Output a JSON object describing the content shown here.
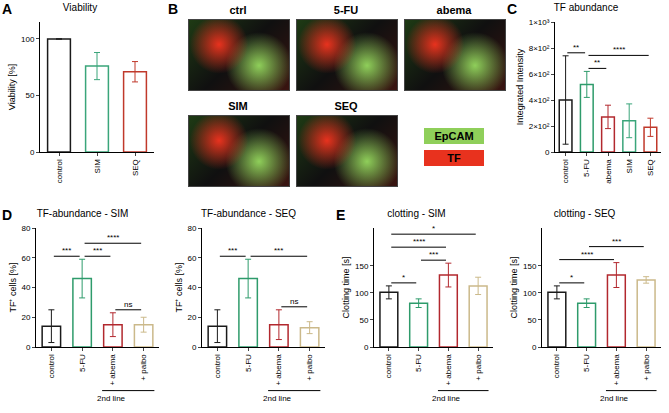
{
  "chart_data": [
    {
      "panel": "A",
      "type": "bar",
      "title": "Viability",
      "y_label": "Viability [%]",
      "categories": [
        "control",
        "SIM",
        "SEQ"
      ],
      "values": [
        100,
        76,
        71
      ],
      "errors": [
        0,
        12,
        9
      ],
      "colors": [
        "#1a1a1a",
        "#3aa57a",
        "#c0392b"
      ],
      "ylim": [
        0,
        115
      ],
      "yticks": [
        0,
        50,
        100
      ],
      "grid": false,
      "significance": []
    },
    {
      "panel": "C",
      "type": "bar",
      "title": "TF abundance",
      "y_label": "Integrated Intensity",
      "categories": [
        "control",
        "5-FU",
        "abema",
        "SIM",
        "SEQ"
      ],
      "values": [
        400,
        520,
        270,
        240,
        190
      ],
      "errors": [
        340,
        100,
        90,
        130,
        70
      ],
      "colors": [
        "#1a1a1a",
        "#2e9b6b",
        "#b2282e",
        "#3aa57a",
        "#c0392b"
      ],
      "ylim": [
        0,
        1000
      ],
      "yticks": [
        0,
        {
          "value": 200,
          "label": "2×10²"
        },
        {
          "value": 400,
          "label": "4×10²"
        },
        {
          "value": 600,
          "label": "6×10²"
        },
        {
          "value": 800,
          "label": "8×10²"
        },
        {
          "value": 1000,
          "label": "1×10³"
        }
      ],
      "grid": false,
      "significance": [
        {
          "from": 0,
          "to": 1,
          "label": "**"
        },
        {
          "from": 1,
          "to": 2,
          "label": "**"
        },
        {
          "from": 1,
          "to": 4,
          "label": "****"
        }
      ]
    },
    {
      "panel": "D",
      "type": "bar",
      "title": "TF-abundance - SIM",
      "y_label": "TF⁺ cells [%]",
      "categories": [
        "control",
        "5-FU",
        "+ abema",
        "+ palbo"
      ],
      "values": [
        14,
        46,
        15,
        15
      ],
      "errors": [
        11,
        13,
        8,
        5
      ],
      "colors": [
        "#1a1a1a",
        "#2e9b6b",
        "#b2282e",
        "#cbb98a"
      ],
      "ylim": [
        0,
        80
      ],
      "yticks": [
        0,
        20,
        40,
        60,
        80
      ],
      "grid": false,
      "significance": [
        {
          "from": 0,
          "to": 1,
          "label": "***"
        },
        {
          "from": 1,
          "to": 3,
          "label": "****"
        },
        {
          "from": 1,
          "to": 2,
          "label": "***"
        },
        {
          "from": 2,
          "to": 3,
          "label": "ns"
        }
      ],
      "group_label": {
        "text": "2nd line",
        "from": 2,
        "to": 3
      }
    },
    {
      "type": "bar",
      "title": "TF-abundance - SEQ",
      "y_label": "TF⁺ cells [%]",
      "categories": [
        "control",
        "5-FU",
        "+ abema",
        "+ palbo"
      ],
      "values": [
        14,
        46,
        15,
        13
      ],
      "errors": [
        11,
        13,
        10,
        4
      ],
      "colors": [
        "#1a1a1a",
        "#2e9b6b",
        "#b2282e",
        "#cbb98a"
      ],
      "ylim": [
        0,
        80
      ],
      "yticks": [
        0,
        20,
        40,
        60,
        80
      ],
      "grid": false,
      "significance": [
        {
          "from": 0,
          "to": 1,
          "label": "***"
        },
        {
          "from": 1,
          "to": 3,
          "label": "***"
        },
        {
          "from": 2,
          "to": 3,
          "label": "ns"
        }
      ],
      "group_label": {
        "text": "2nd line",
        "from": 2,
        "to": 3
      }
    },
    {
      "panel": "E",
      "type": "bar",
      "title": "clotting - SIM",
      "y_label": "Clotting time [s]",
      "categories": [
        "control",
        "5-FU",
        "+ abema",
        "+ palbo"
      ],
      "values": [
        101,
        81,
        133,
        113
      ],
      "errors": [
        12,
        8,
        22,
        16
      ],
      "colors": [
        "#1a1a1a",
        "#2e9b6b",
        "#b2282e",
        "#cbb98a"
      ],
      "ylim": [
        0,
        220
      ],
      "yticks": [
        0,
        50,
        100,
        150
      ],
      "grid": false,
      "significance": [
        {
          "from": 0,
          "to": 1,
          "label": "*"
        },
        {
          "from": 1,
          "to": 2,
          "label": "***"
        },
        {
          "from": 0,
          "to": 2,
          "label": "****"
        },
        {
          "from": 0,
          "to": 3,
          "label": "*"
        }
      ],
      "group_label": {
        "text": "2nd line",
        "from": 2,
        "to": 3
      }
    },
    {
      "type": "bar",
      "title": "clotting - SEQ",
      "y_label": "Clotting time [s]",
      "categories": [
        "control",
        "5-FU",
        "+ abema",
        "+ palbo"
      ],
      "values": [
        101,
        81,
        133,
        124
      ],
      "errors": [
        12,
        8,
        23,
        6
      ],
      "colors": [
        "#1a1a1a",
        "#2e9b6b",
        "#b2282e",
        "#cbb98a"
      ],
      "ylim": [
        0,
        220
      ],
      "yticks": [
        0,
        50,
        100,
        150
      ],
      "grid": false,
      "significance": [
        {
          "from": 0,
          "to": 1,
          "label": "*"
        },
        {
          "from": 0,
          "to": 2,
          "label": "****"
        },
        {
          "from": 1,
          "to": 3,
          "label": "***"
        }
      ],
      "group_label": {
        "text": "2nd line",
        "from": 2,
        "to": 3
      }
    }
  ],
  "image_panel": {
    "panel": "B",
    "tiles": [
      "ctrl",
      "5-FU",
      "abema",
      "SIM",
      "SEQ"
    ],
    "legend": [
      {
        "name": "EpCAM",
        "color": "#8fcf5a"
      },
      {
        "name": "TF",
        "color": "#e8321e"
      }
    ]
  }
}
